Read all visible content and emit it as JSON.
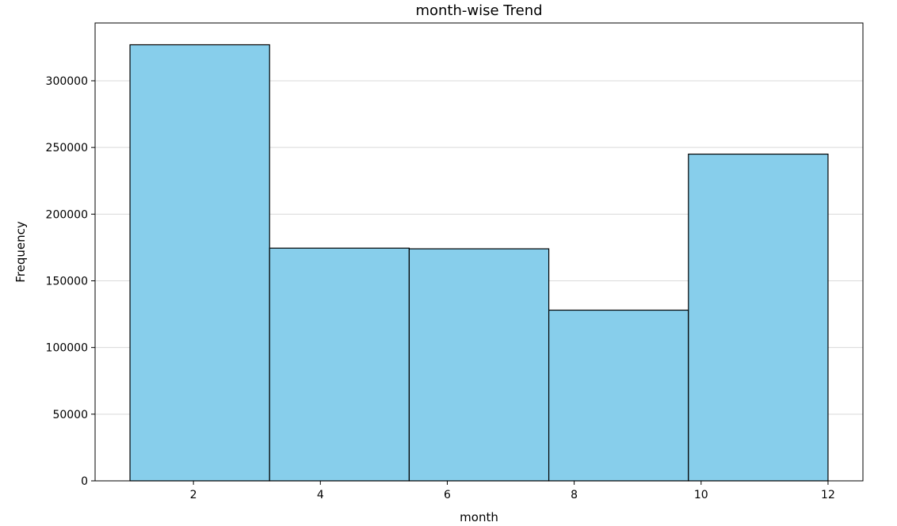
{
  "chart_data": {
    "type": "bar",
    "title": "month-wise Trend",
    "xlabel": "month",
    "ylabel": "Frequency",
    "bins": [
      {
        "start": 1.0,
        "end": 3.2,
        "value": 327000
      },
      {
        "start": 3.2,
        "end": 5.4,
        "value": 174500
      },
      {
        "start": 5.4,
        "end": 7.6,
        "value": 174000
      },
      {
        "start": 7.6,
        "end": 9.8,
        "value": 128000
      },
      {
        "start": 9.8,
        "end": 12.0,
        "value": 245000
      }
    ],
    "xlim": [
      0.45,
      12.55
    ],
    "ylim": [
      0,
      343350
    ],
    "xticks": [
      2,
      4,
      6,
      8,
      10,
      12
    ],
    "yticks": [
      0,
      50000,
      100000,
      150000,
      200000,
      250000,
      300000
    ],
    "grid": "y",
    "bar_color": "#87CEEB",
    "edge_color": "#000000",
    "grid_color": "#d9d9d9"
  }
}
